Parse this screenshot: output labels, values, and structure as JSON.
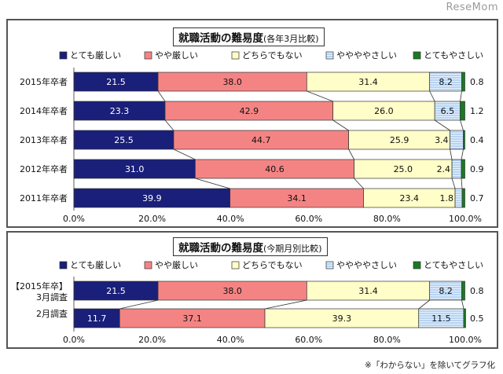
{
  "watermark": "ReseMom",
  "footnote": "※「わからない」を除いてグラフ化",
  "legend": [
    {
      "label": "とても厳しい",
      "color": "#1a1f7a",
      "pattern": "solid"
    },
    {
      "label": "やや厳しい",
      "color": "#f48484",
      "pattern": "solid"
    },
    {
      "label": "どちらでもない",
      "color": "#fffdc8",
      "pattern": "solid"
    },
    {
      "label": "ややややさしい",
      "color": "#e3f1ff",
      "pattern": "hstripe"
    },
    {
      "label": "とてもやさしい",
      "color": "#1a7a22",
      "pattern": "solid"
    }
  ],
  "chart_data": [
    {
      "type": "bar",
      "stacked": true,
      "orientation": "horizontal",
      "title": "就職活動の難易度",
      "subtitle": "(各年3月比較)",
      "xlim": [
        0,
        100
      ],
      "xticks": [
        "0.0%",
        "20.0%",
        "40.0%",
        "60.0%",
        "80.0%",
        "100.0%"
      ],
      "categories": [
        "2015年卒者",
        "2014年卒者",
        "2013年卒者",
        "2012年卒者",
        "2011年卒者"
      ],
      "series": [
        {
          "name": "とても厳しい",
          "values": [
            21.5,
            23.3,
            25.5,
            31.0,
            39.9
          ]
        },
        {
          "name": "やや厳しい",
          "values": [
            38.0,
            42.9,
            44.7,
            40.6,
            34.1
          ]
        },
        {
          "name": "どちらでもない",
          "values": [
            31.4,
            26.0,
            25.9,
            25.0,
            23.4
          ]
        },
        {
          "name": "ややややさしい",
          "values": [
            8.2,
            6.5,
            3.4,
            2.4,
            1.8
          ]
        },
        {
          "name": "とてもやさしい",
          "values": [
            0.8,
            1.2,
            0.4,
            0.9,
            0.7
          ]
        }
      ],
      "legend_position": "top",
      "grid": false
    },
    {
      "type": "bar",
      "stacked": true,
      "orientation": "horizontal",
      "title": "就職活動の難易度",
      "subtitle": "(今期月別比較)",
      "xlim": [
        0,
        100
      ],
      "xticks": [
        "0.0%",
        "20.0%",
        "40.0%",
        "60.0%",
        "80.0%",
        "100.0%"
      ],
      "categories": [
        [
          "【2015年卒】",
          "3月調査"
        ],
        [
          "2月調査"
        ]
      ],
      "series": [
        {
          "name": "とても厳しい",
          "values": [
            21.5,
            11.7
          ]
        },
        {
          "name": "やや厳しい",
          "values": [
            38.0,
            37.1
          ]
        },
        {
          "name": "どちらでもない",
          "values": [
            31.4,
            39.3
          ]
        },
        {
          "name": "ややややさしい",
          "values": [
            8.2,
            11.5
          ]
        },
        {
          "name": "とてもやさしい",
          "values": [
            0.8,
            0.5
          ]
        }
      ],
      "legend_position": "top",
      "grid": false
    }
  ]
}
